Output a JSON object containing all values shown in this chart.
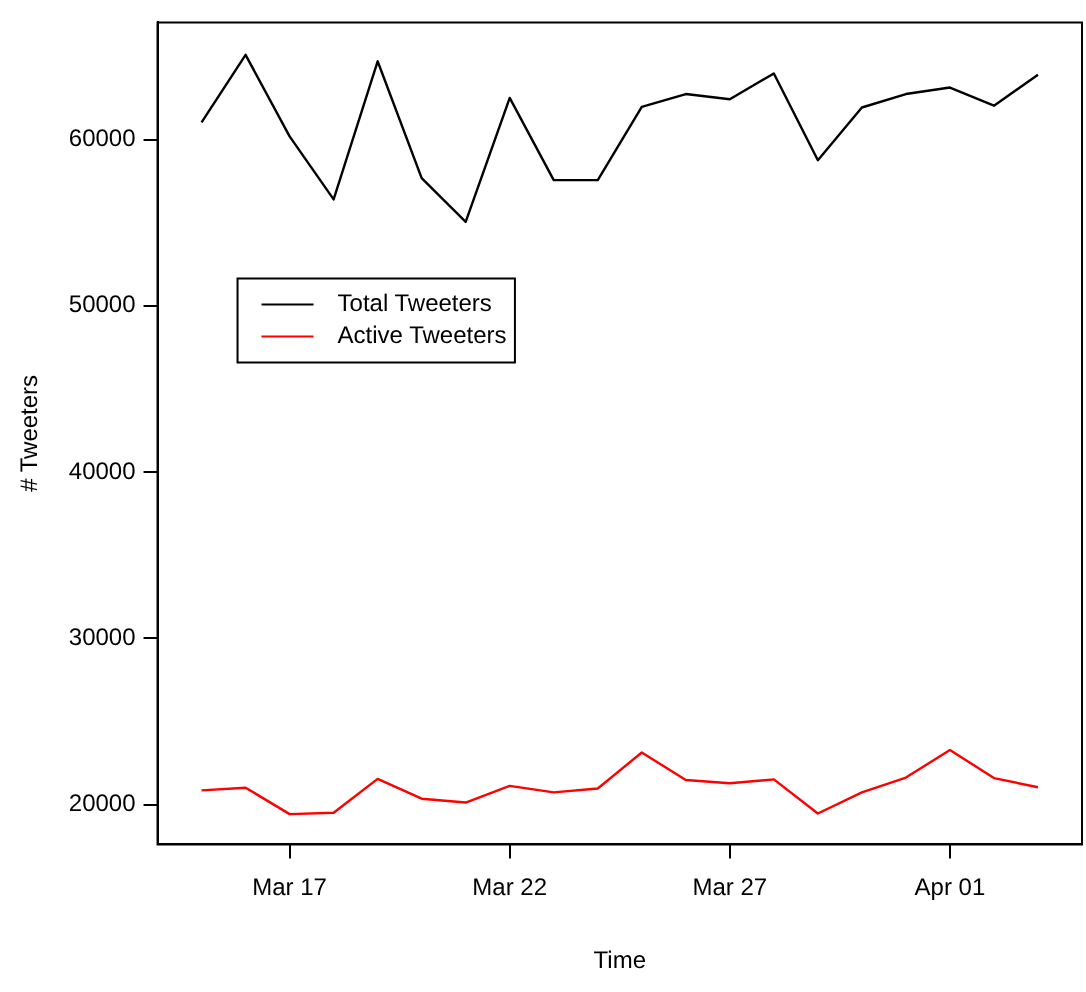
{
  "chart_data": {
    "type": "line",
    "xlabel": "Time",
    "ylabel": "# Tweeters",
    "x": [
      "--03-15",
      "--03-16",
      "--03-17",
      "--03-18",
      "--03-19",
      "--03-20",
      "--03-21",
      "--03-22",
      "--03-23",
      "--03-24",
      "--03-25",
      "--03-26",
      "--03-27",
      "--03-28",
      "--03-29",
      "--03-30",
      "--03-31",
      "--04-01",
      "--04-02",
      "--04-03"
    ],
    "series": [
      {
        "name": "Total Tweeters",
        "color": "#000000",
        "values": [
          61040,
          65100,
          60190,
          56400,
          64710,
          57680,
          55050,
          62510,
          57560,
          57560,
          61970,
          62740,
          62430,
          63980,
          58760,
          61930,
          62740,
          63130,
          62040,
          63900
        ]
      },
      {
        "name": "Active Tweeters",
        "color": "#ff0000",
        "values": [
          20850,
          21010,
          19420,
          19500,
          21540,
          20350,
          20120,
          21120,
          20730,
          20960,
          23130,
          21470,
          21280,
          21510,
          19460,
          20730,
          21620,
          23280,
          21590,
          21040
        ]
      }
    ],
    "xlim": [
      "--03-14",
      "--04-04"
    ],
    "xticks": [
      {
        "value": "--03-17",
        "label": "Mar 17"
      },
      {
        "value": "--03-22",
        "label": "Mar 22"
      },
      {
        "value": "--03-27",
        "label": "Mar 27"
      },
      {
        "value": "--04-01",
        "label": "Apr 01"
      }
    ],
    "ylim": [
      17600,
      67050
    ],
    "yticks": [
      20000,
      30000,
      40000,
      50000,
      60000
    ],
    "grid": false,
    "legend": "top left",
    "marker": "none",
    "line_style": "solid"
  }
}
